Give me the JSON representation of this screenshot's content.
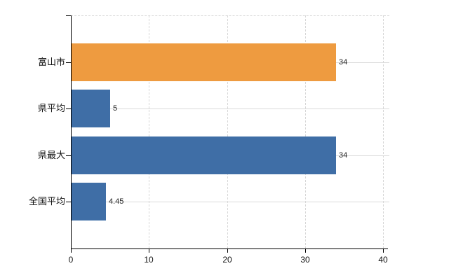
{
  "chart": {
    "background_color": "#ffffff",
    "axis_color": "#000000",
    "grid_color_horizontal": "#dbdbdb",
    "grid_color_vertical": "#d6d6d6",
    "text_color": "#111111",
    "value_label_color": "#222222"
  },
  "chart_data": {
    "type": "bar",
    "orientation": "horizontal",
    "title": "",
    "xlabel": "",
    "ylabel": "",
    "categories": [
      "富山市",
      "県平均",
      "県最大",
      "全国平均"
    ],
    "values": [
      34,
      5,
      34,
      4.45
    ],
    "value_labels": [
      "34",
      "5",
      "34",
      "4.45"
    ],
    "bar_colors": [
      "#ee9b40",
      "#3f6ea6",
      "#3f6ea6",
      "#3f6ea6"
    ],
    "xlim": [
      0,
      40
    ],
    "x_ticks": [
      0,
      10,
      20,
      30,
      40
    ],
    "grid": true,
    "legend": false
  }
}
